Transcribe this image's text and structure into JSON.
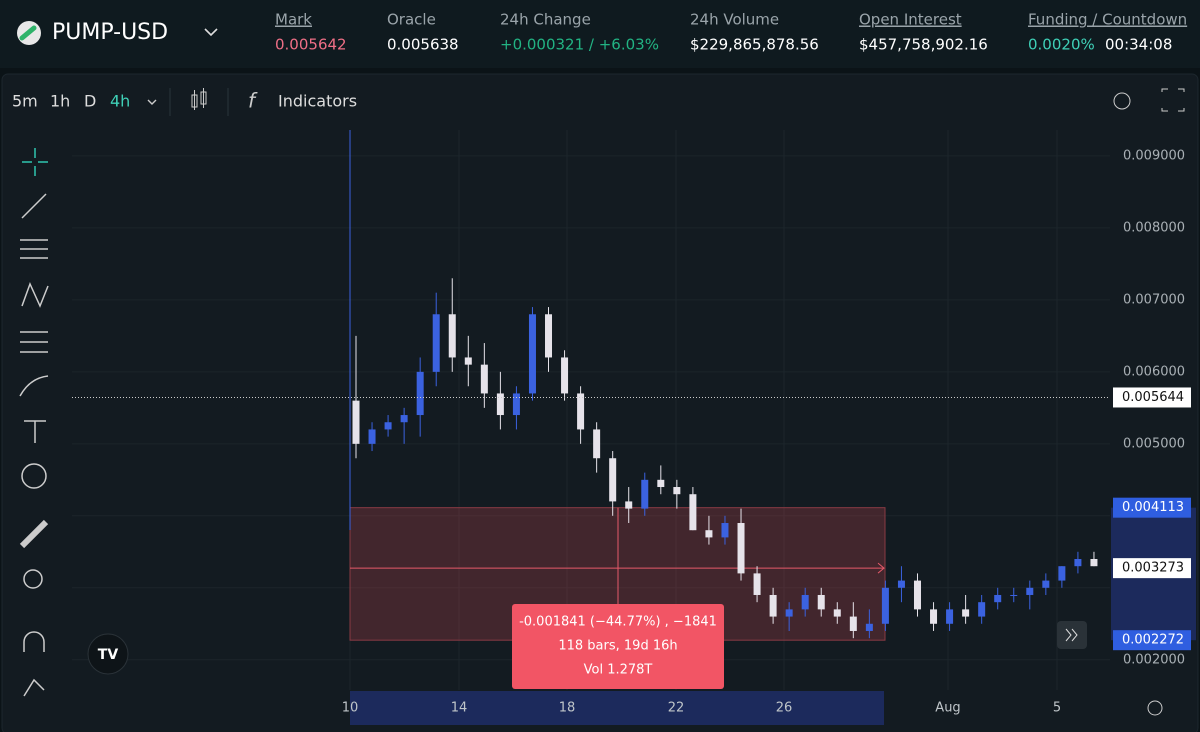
{
  "header": {
    "symbol": "PUMP-USD",
    "stats": [
      {
        "label": "Mark",
        "value": "0.005642"
      },
      {
        "label": "Oracle",
        "value": "0.005638"
      },
      {
        "label": "24h Change",
        "value": "+0.000321 / +6.03%"
      },
      {
        "label": "24h Volume",
        "value": "$229,865,878.56"
      },
      {
        "label": "Open Interest",
        "value": "$457,758,902.16"
      },
      {
        "label": "Funding / Countdown",
        "value": "0.0020%",
        "extra": "00:34:08"
      }
    ]
  },
  "toolbar": {
    "intervals": [
      "5m",
      "1h",
      "D",
      "4h"
    ],
    "indicators": "Indicators"
  },
  "chart_data": {
    "type": "candlestick",
    "ylim": [
      0.00158,
      0.00936
    ],
    "yticks": [
      {
        "value": 0.002,
        "label": "0.002000"
      },
      {
        "value": 0.003,
        "label": "0.003000"
      },
      {
        "value": 0.004,
        "label": "0.004000"
      },
      {
        "value": 0.005,
        "label": "0.005000"
      },
      {
        "value": 0.006,
        "label": "0.006000"
      },
      {
        "value": 0.007,
        "label": "0.007000"
      },
      {
        "value": 0.008,
        "label": "0.008000"
      },
      {
        "value": 0.009,
        "label": "0.009000"
      }
    ],
    "xtick_labels": [
      "10",
      "14",
      "18",
      "22",
      "26",
      "Aug",
      "5"
    ],
    "up_color": "#3b62e0",
    "down_color": "#e6e3ea",
    "grid": true,
    "candles": [
      [
        0.0056,
        0.0065,
        0.0048,
        0.005
      ],
      [
        0.005,
        0.0053,
        0.0049,
        0.0052
      ],
      [
        0.0052,
        0.0054,
        0.0051,
        0.0053
      ],
      [
        0.0053,
        0.0055,
        0.005,
        0.0054
      ],
      [
        0.0054,
        0.0062,
        0.0051,
        0.006
      ],
      [
        0.006,
        0.0071,
        0.0058,
        0.0068
      ],
      [
        0.0068,
        0.0073,
        0.006,
        0.0062
      ],
      [
        0.0062,
        0.0065,
        0.0058,
        0.0061
      ],
      [
        0.0061,
        0.0064,
        0.0055,
        0.0057
      ],
      [
        0.0057,
        0.006,
        0.0052,
        0.0054
      ],
      [
        0.0054,
        0.0058,
        0.0052,
        0.0057
      ],
      [
        0.0057,
        0.0069,
        0.0056,
        0.0068
      ],
      [
        0.0068,
        0.0069,
        0.006,
        0.0062
      ],
      [
        0.0062,
        0.0063,
        0.0056,
        0.0057
      ],
      [
        0.0057,
        0.0058,
        0.005,
        0.0052
      ],
      [
        0.0052,
        0.0053,
        0.0046,
        0.0048
      ],
      [
        0.0048,
        0.0049,
        0.004,
        0.0042
      ],
      [
        0.0042,
        0.0044,
        0.0039,
        0.0041
      ],
      [
        0.0041,
        0.0046,
        0.004,
        0.0045
      ],
      [
        0.0045,
        0.0047,
        0.0043,
        0.0044
      ],
      [
        0.0044,
        0.0045,
        0.0041,
        0.0043
      ],
      [
        0.0043,
        0.0044,
        0.0038,
        0.0038
      ],
      [
        0.0038,
        0.004,
        0.0036,
        0.0037
      ],
      [
        0.0037,
        0.004,
        0.0036,
        0.0039
      ],
      [
        0.0039,
        0.0041,
        0.0031,
        0.0032
      ],
      [
        0.0032,
        0.0033,
        0.0028,
        0.0029
      ],
      [
        0.0029,
        0.003,
        0.0025,
        0.0026
      ],
      [
        0.0026,
        0.0028,
        0.0024,
        0.0027
      ],
      [
        0.0027,
        0.003,
        0.0026,
        0.0029
      ],
      [
        0.0029,
        0.003,
        0.0026,
        0.0027
      ],
      [
        0.0027,
        0.0028,
        0.0025,
        0.0026
      ],
      [
        0.0026,
        0.0028,
        0.0023,
        0.0024
      ],
      [
        0.0024,
        0.0027,
        0.0023,
        0.0025
      ],
      [
        0.0025,
        0.0031,
        0.0024,
        0.003
      ],
      [
        0.003,
        0.0033,
        0.0028,
        0.0031
      ],
      [
        0.0031,
        0.0032,
        0.0026,
        0.0027
      ],
      [
        0.0027,
        0.0028,
        0.0024,
        0.0025
      ],
      [
        0.0025,
        0.0028,
        0.0024,
        0.0027
      ],
      [
        0.0027,
        0.0029,
        0.0025,
        0.0026
      ],
      [
        0.0026,
        0.0029,
        0.0025,
        0.0028
      ],
      [
        0.0028,
        0.003,
        0.0027,
        0.0029
      ],
      [
        0.0029,
        0.003,
        0.0028,
        0.0029
      ],
      [
        0.0029,
        0.0031,
        0.0027,
        0.003
      ],
      [
        0.003,
        0.0032,
        0.0029,
        0.0031
      ],
      [
        0.0031,
        0.0033,
        0.003,
        0.0033
      ],
      [
        0.0033,
        0.0035,
        0.0032,
        0.0034
      ],
      [
        0.0034,
        0.0035,
        0.0033,
        0.0033
      ]
    ],
    "last_price": 0.005644,
    "measure": {
      "from": 0.004113,
      "to": 0.002272,
      "mid": 0.003273,
      "text": [
        "-0.001841 (−44.77%) , −1841",
        "118 bars, 19d 16h",
        "Vol 1.278T"
      ]
    }
  }
}
